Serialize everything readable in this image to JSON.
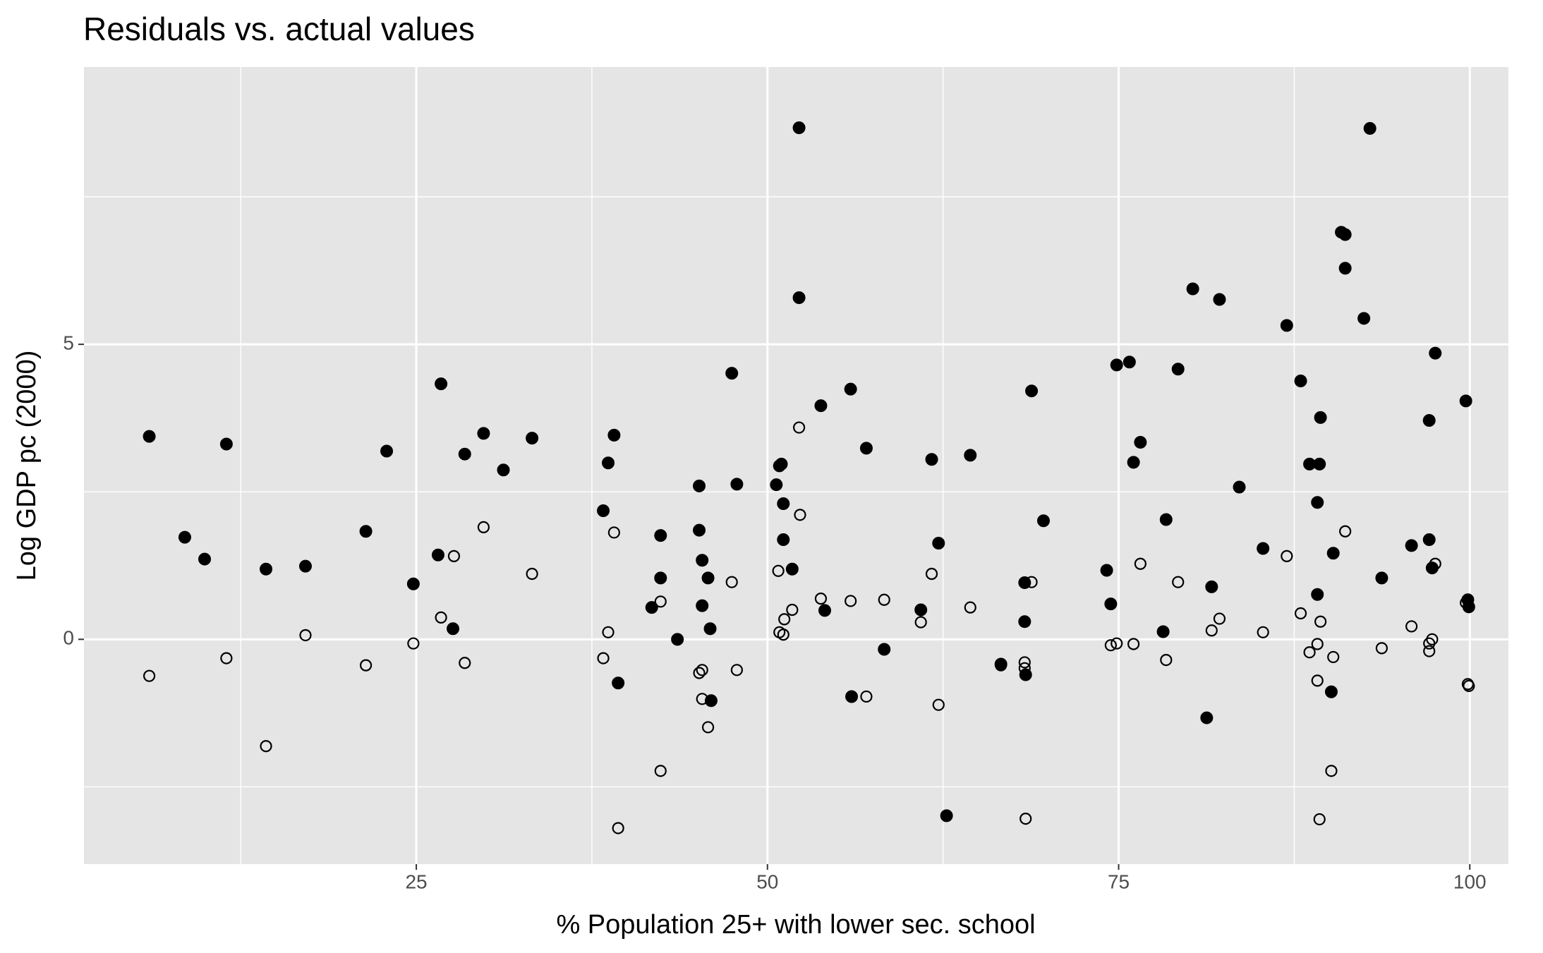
{
  "chart_data": {
    "type": "scatter",
    "title": "Residuals vs. actual values",
    "x_label": "% Population 25+ with lower sec. school",
    "y_label": "Log GDP pc (2000)",
    "xlim": [
      1.34,
      102.75
    ],
    "ylim": [
      -3.81,
      9.7
    ],
    "xticks": [
      25,
      50,
      75,
      100
    ],
    "yticks": [
      0,
      5
    ],
    "x_minor_grid": [
      12.5,
      37.5,
      62.5,
      87.5
    ],
    "y_minor_grid": [
      -2.5,
      2.5,
      7.5
    ],
    "grid": true,
    "panel_color": "#e5e5e5",
    "grid_color": "#ffffff",
    "series": [
      {
        "color": "#000000",
        "filled": true,
        "x": [
          5.99,
          8.52,
          9.93,
          11.48,
          14.3,
          17.11,
          21.41,
          22.89,
          24.79,
          26.76,
          26.55,
          27.61,
          28.45,
          29.79,
          31.2,
          33.24,
          38.31,
          38.66,
          39.08,
          39.37,
          41.76,
          42.39,
          42.39,
          43.59,
          45.14,
          45.14,
          45.35,
          45.35,
          45.77,
          45.92,
          45.99,
          47.46,
          47.82,
          50.63,
          50.85,
          50.99,
          51.13,
          51.13,
          51.76,
          52.25,
          52.25,
          53.8,
          54.08,
          55.92,
          55.99,
          57.04,
          58.31,
          60.92,
          61.69,
          62.18,
          62.75,
          64.44,
          66.62,
          68.31,
          68.31,
          68.38,
          68.8,
          69.65,
          74.15,
          74.44,
          74.86,
          75.77,
          76.06,
          76.55,
          78.17,
          78.38,
          79.23,
          80.28,
          81.27,
          81.62,
          82.18,
          83.59,
          85.28,
          86.97,
          87.96,
          88.59,
          89.15,
          89.15,
          89.3,
          89.37,
          90.14,
          90.28,
          90.85,
          91.13,
          91.13,
          92.46,
          92.89,
          93.73,
          95.85,
          97.11,
          97.11,
          97.32,
          97.54,
          99.72,
          99.86,
          99.93
        ],
        "values": [
          3.44,
          1.73,
          1.36,
          3.31,
          1.19,
          1.24,
          1.83,
          3.19,
          0.94,
          4.33,
          1.43,
          0.18,
          3.14,
          3.49,
          2.87,
          3.41,
          2.18,
          2.99,
          3.46,
          -0.74,
          0.54,
          1.76,
          1.04,
          0.0,
          2.6,
          1.85,
          1.34,
          0.57,
          1.04,
          0.18,
          -1.04,
          4.51,
          2.63,
          2.62,
          2.94,
          2.97,
          2.3,
          1.69,
          1.19,
          8.67,
          5.79,
          3.96,
          0.49,
          4.24,
          -0.97,
          3.24,
          -0.17,
          0.5,
          3.05,
          1.63,
          -2.99,
          3.12,
          -0.42,
          0.96,
          0.3,
          -0.6,
          4.21,
          2.01,
          1.17,
          0.6,
          4.65,
          4.7,
          3.0,
          3.34,
          0.13,
          2.03,
          4.58,
          5.94,
          -1.33,
          0.89,
          5.76,
          2.58,
          1.54,
          5.32,
          4.38,
          2.97,
          2.32,
          0.76,
          2.97,
          3.76,
          -0.89,
          1.46,
          6.9,
          6.86,
          6.29,
          5.44,
          8.66,
          1.04,
          1.59,
          1.69,
          3.71,
          1.21,
          4.85,
          4.04,
          0.67,
          0.55
        ]
      },
      {
        "color": "#000000",
        "filled": false,
        "x": [
          5.99,
          11.48,
          14.3,
          17.11,
          21.41,
          24.79,
          26.76,
          27.68,
          28.45,
          29.79,
          33.24,
          38.31,
          38.66,
          39.08,
          39.37,
          42.39,
          42.39,
          45.14,
          45.35,
          45.35,
          45.77,
          47.46,
          47.82,
          50.77,
          50.85,
          51.13,
          51.2,
          51.76,
          52.25,
          52.32,
          53.8,
          55.92,
          57.04,
          58.31,
          60.92,
          61.69,
          62.18,
          64.44,
          66.62,
          68.31,
          68.31,
          68.38,
          68.8,
          74.44,
          74.86,
          76.06,
          76.55,
          78.38,
          79.23,
          81.62,
          82.18,
          85.28,
          86.97,
          87.96,
          88.59,
          89.15,
          89.15,
          89.3,
          89.37,
          90.14,
          90.28,
          91.13,
          93.73,
          95.85,
          97.11,
          97.11,
          97.32,
          97.54,
          99.72,
          99.86,
          99.93
        ],
        "values": [
          -0.62,
          -0.32,
          -1.81,
          0.07,
          -0.44,
          -0.07,
          0.37,
          1.41,
          -0.4,
          1.9,
          1.11,
          -0.32,
          0.12,
          1.81,
          -3.2,
          0.64,
          -2.23,
          -0.57,
          -0.52,
          -1.01,
          -1.49,
          0.97,
          -0.52,
          1.16,
          0.12,
          0.08,
          0.34,
          0.5,
          3.59,
          2.11,
          0.69,
          0.65,
          -0.97,
          0.67,
          0.29,
          1.11,
          -1.11,
          0.54,
          -0.44,
          -0.39,
          -0.49,
          -3.04,
          0.97,
          -0.1,
          -0.07,
          -0.08,
          1.28,
          -0.35,
          0.97,
          0.15,
          0.35,
          0.12,
          1.41,
          0.44,
          -0.22,
          -0.08,
          -0.7,
          -3.05,
          0.3,
          -2.23,
          -0.3,
          1.83,
          -0.15,
          0.22,
          -0.07,
          -0.2,
          0.0,
          1.28,
          0.62,
          -0.76,
          -0.79
        ]
      }
    ]
  }
}
